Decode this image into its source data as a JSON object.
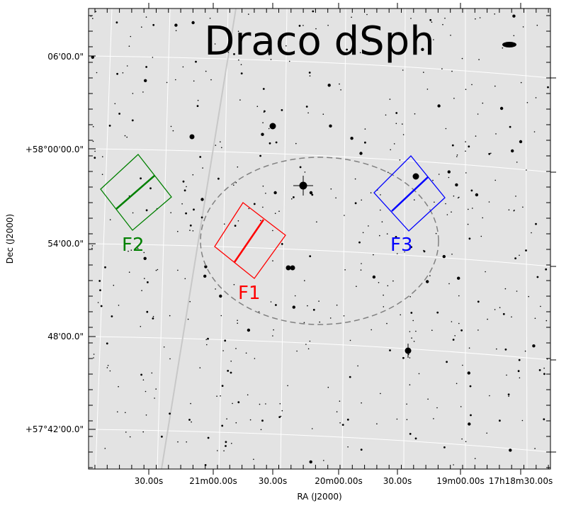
{
  "figure": {
    "title": "Draco dSph",
    "xlabel": "RA (J2000)",
    "ylabel": "Dec (J2000)",
    "x_ticks": [
      "30.00s",
      "21m00.00s",
      "30.00s",
      "20m00.00s",
      "30.00s",
      "19m00.00s",
      "17h18m30.00s"
    ],
    "y_ticks": [
      "06'00.0\"",
      "+58°00'00.0\"",
      "54'00.0\"",
      "48'00.0\"",
      "+57°42'00.0\""
    ]
  },
  "fields": [
    {
      "label": "F1",
      "color": "#ff0000"
    },
    {
      "label": "F2",
      "color": "#008000"
    },
    {
      "label": "F3",
      "color": "#0000ff"
    }
  ],
  "colors": {
    "background": "#e3e3e3",
    "grid": "#ffffff",
    "ellipse": "#808080",
    "stars": "#000000"
  }
}
